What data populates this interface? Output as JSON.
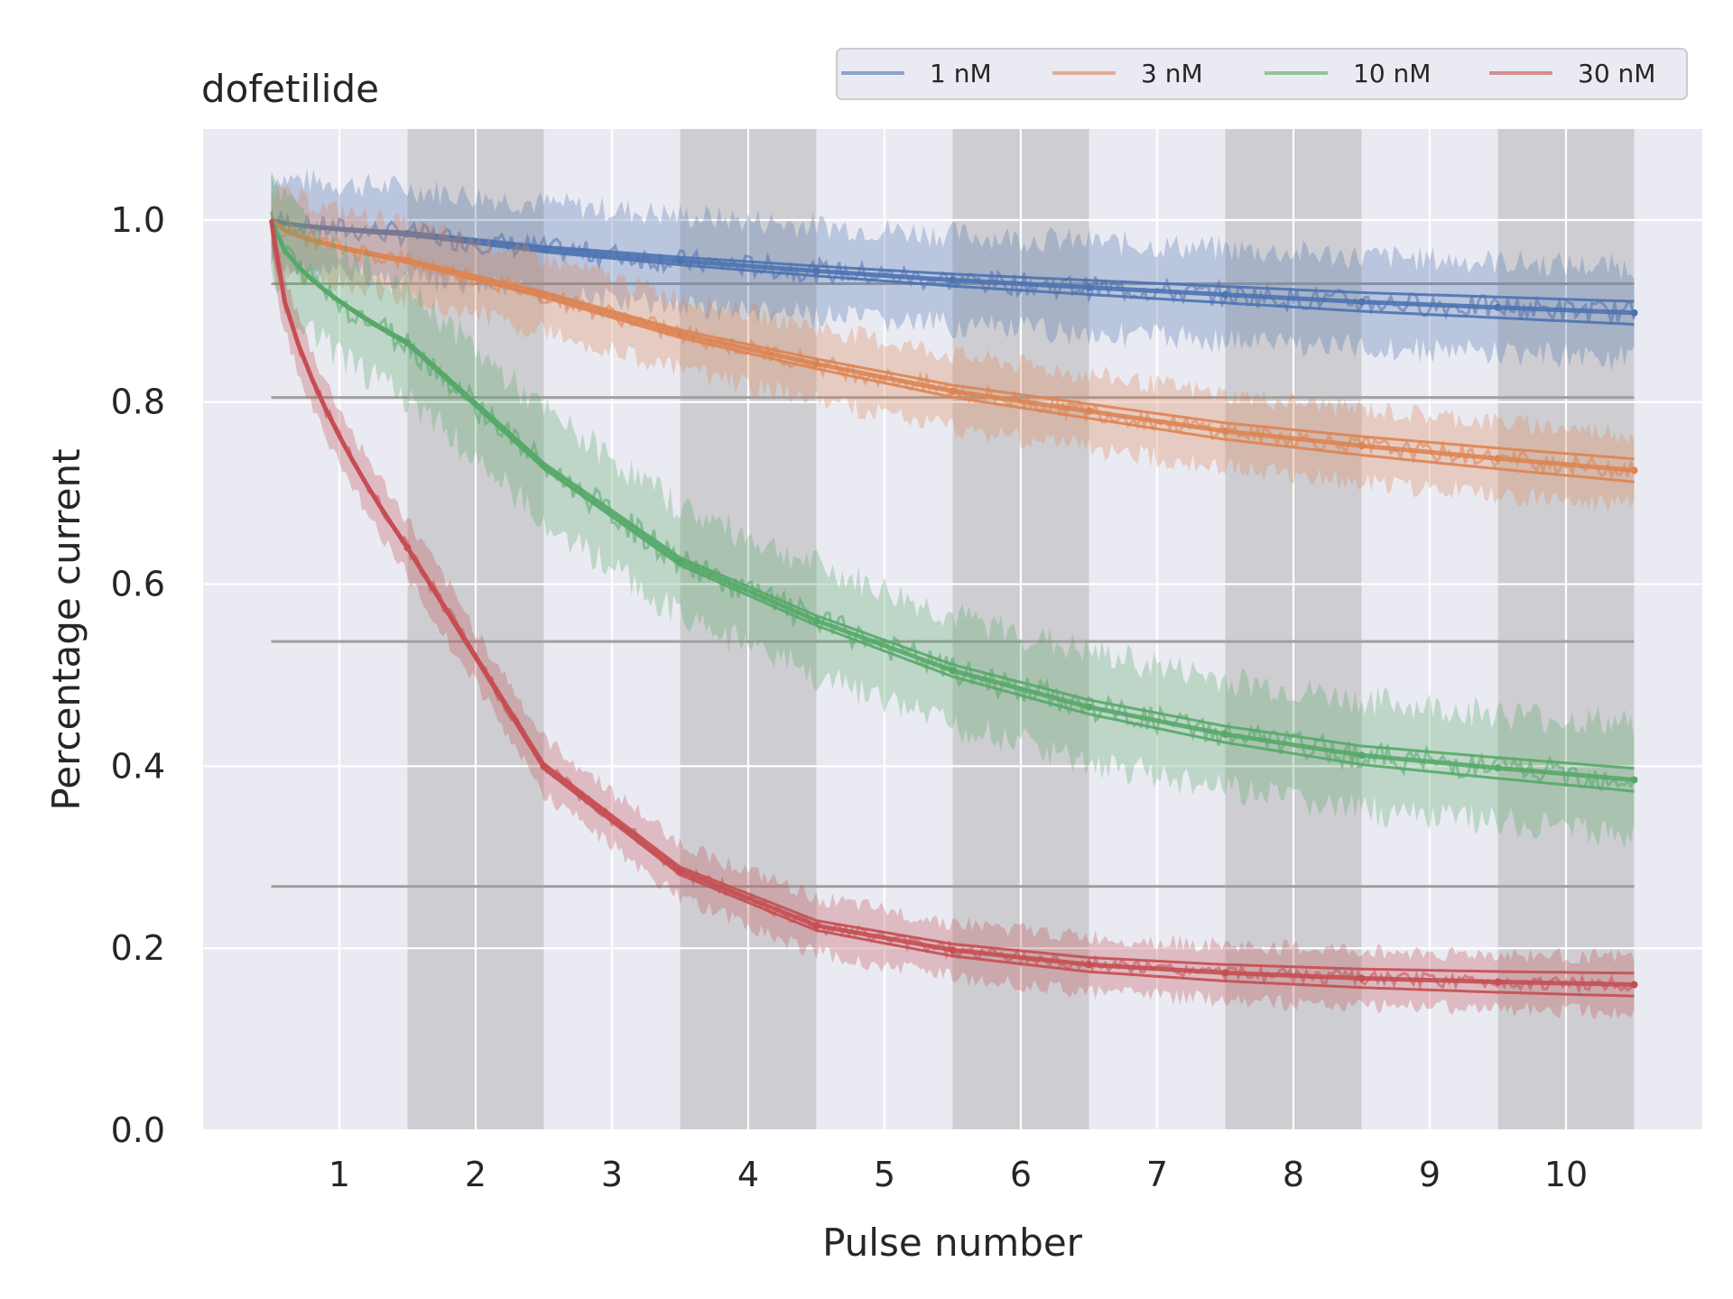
{
  "chart_data": {
    "type": "line",
    "title": "dofetilide",
    "xlabel": "Pulse number",
    "ylabel": "Percentage current",
    "xlim": [
      0,
      11
    ],
    "ylim": [
      0,
      1.1
    ],
    "x_ticks": [
      1,
      2,
      3,
      4,
      5,
      6,
      7,
      8,
      9,
      10
    ],
    "y_ticks": [
      0.0,
      0.2,
      0.4,
      0.6,
      0.8,
      1.0
    ],
    "y_tick_labels": [
      "0.0",
      "0.2",
      "0.4",
      "0.6",
      "0.8",
      "1.0"
    ],
    "grid": true,
    "legend_position": "top-right",
    "shaded_pulses": [
      2,
      4,
      6,
      8,
      10
    ],
    "reference_levels": [
      0.93,
      0.805,
      0.537,
      0.268
    ],
    "series": [
      {
        "name": "1 nM",
        "color": "#4c72b0",
        "band_width": 0.05,
        "values": [
          0.985,
          0.968,
          0.955,
          0.944,
          0.934,
          0.926,
          0.918,
          0.91,
          0.904,
          0.898
        ]
      },
      {
        "name": "3 nM",
        "color": "#dd8452",
        "band_width": 0.04,
        "values": [
          0.955,
          0.918,
          0.875,
          0.842,
          0.812,
          0.79,
          0.768,
          0.752,
          0.738,
          0.725
        ]
      },
      {
        "name": "10 nM",
        "color": "#55a868",
        "band_width": 0.06,
        "values": [
          0.865,
          0.73,
          0.625,
          0.56,
          0.505,
          0.465,
          0.435,
          0.412,
          0.398,
          0.385
        ]
      },
      {
        "name": "30 nM",
        "color": "#c44e52",
        "band_width": 0.03,
        "values": [
          0.64,
          0.4,
          0.285,
          0.225,
          0.198,
          0.182,
          0.173,
          0.167,
          0.163,
          0.16
        ]
      }
    ]
  }
}
